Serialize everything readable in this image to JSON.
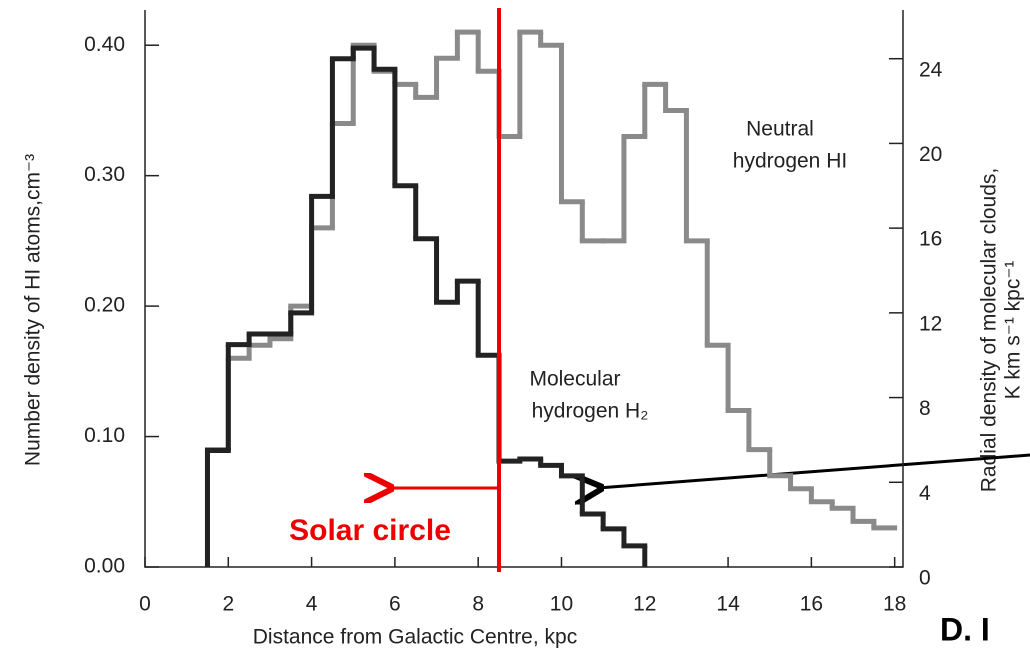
{
  "chart_data": {
    "type": "histogram",
    "xlabel": "Distance from Galactic Centre, kpc",
    "ylabel": "Number density of HI  atoms,cm⁻³",
    "y2label": [
      "Radial density of molecular clouds,",
      "K km s⁻¹ kpc⁻¹"
    ],
    "xlim": [
      0,
      18.2
    ],
    "xticks": [
      0,
      2,
      4,
      6,
      8,
      10,
      12,
      14,
      16,
      18
    ],
    "ylim": [
      0,
      0.427
    ],
    "yticks": [
      {
        "value": 0,
        "label": "0.00"
      },
      {
        "value": 0.1,
        "label": "0.10"
      },
      {
        "value": 0.2,
        "label": "0.20"
      },
      {
        "value": 0.3,
        "label": "0.30"
      },
      {
        "value": 0.4,
        "label": "0.40"
      }
    ],
    "y2lim": [
      0,
      26.3
    ],
    "y2ticks": [
      0,
      4,
      8,
      12,
      16,
      20,
      24
    ],
    "series": [
      {
        "name": "Neutral hydrogen HI",
        "color": "#8a8a8a",
        "bins": [
          1.5,
          2,
          2.5,
          3,
          3.5,
          4,
          4.5,
          5,
          5.5,
          6,
          6.5,
          7,
          7.5,
          8,
          8.5,
          9,
          9.5,
          10,
          10.5,
          11,
          11.5,
          12,
          12.5,
          13,
          13.5,
          14,
          14.5,
          15,
          15.5,
          16,
          16.5,
          17,
          17.5,
          18
        ],
        "values": [
          0.09,
          0.16,
          0.17,
          0.175,
          0.2,
          0.26,
          0.34,
          0.4,
          0.38,
          0.37,
          0.36,
          0.39,
          0.41,
          0.38,
          0.33,
          0.41,
          0.4,
          0.28,
          0.25,
          0.25,
          0.33,
          0.37,
          0.35,
          0.25,
          0.17,
          0.12,
          0.09,
          0.07,
          0.06,
          0.05,
          0.045,
          0.035,
          0.03
        ]
      },
      {
        "name": "Molecular hydrogen H2",
        "color": "#222222",
        "axis": "y2",
        "bins": [
          1.5,
          2,
          2.5,
          3,
          3.5,
          4,
          4.5,
          5,
          5.5,
          6,
          6.5,
          7,
          7.5,
          8,
          8.5,
          9,
          9.5,
          10,
          10.5,
          11,
          11.5,
          12
        ],
        "values": [
          5.5,
          10.5,
          11,
          11,
          12,
          17.5,
          24,
          24.5,
          23.5,
          18,
          15.5,
          12.5,
          13.5,
          10,
          5,
          5.1,
          4.8,
          4.3,
          2.5,
          1.8,
          1.0
        ]
      }
    ],
    "annotations": {
      "neutral": [
        "Neutral",
        "hydrogen HI"
      ],
      "molecular": [
        "Molecular",
        "hydrogen H₂"
      ],
      "solar": "Solar circle",
      "corner": "D. I"
    },
    "solar_circle_x": 8.5
  }
}
